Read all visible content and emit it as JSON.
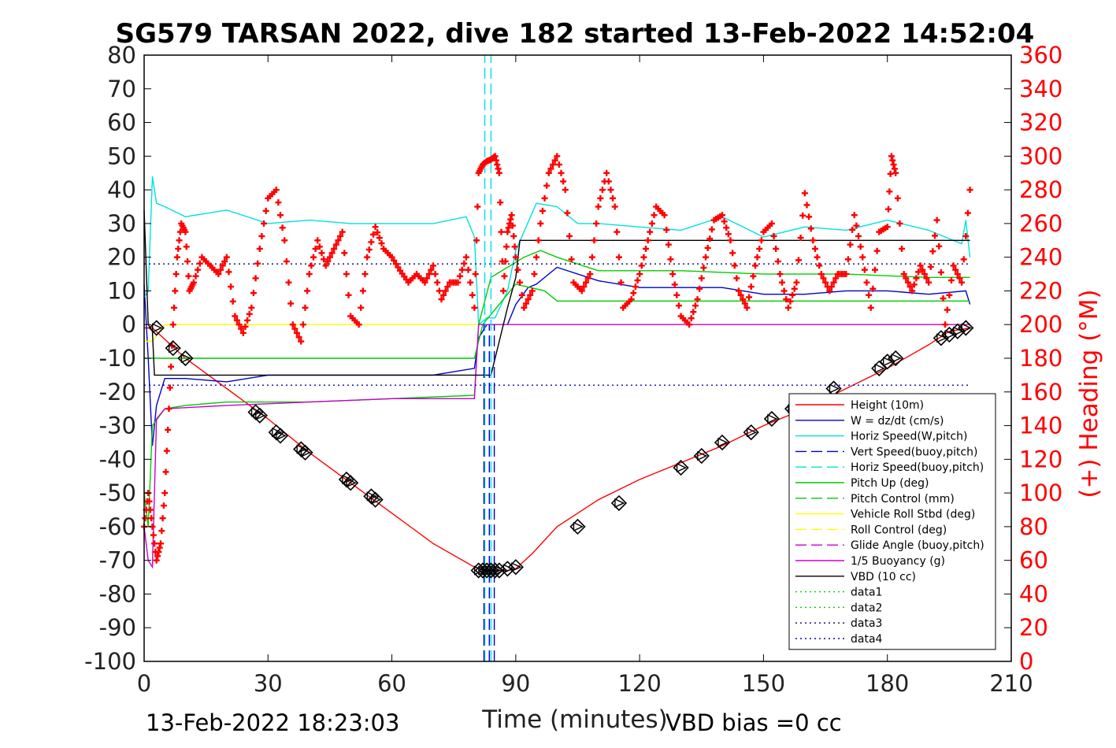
{
  "chart_data": {
    "type": "line",
    "title": "SG579 TARSAN 2022, dive 182 started 13-Feb-2022 14:52:04",
    "xlabel": "Time (minutes)",
    "ylabel_right": "(+) Heading (°M)",
    "xlim": [
      0,
      210
    ],
    "ylim_left": [
      -100,
      80
    ],
    "ylim_right": [
      0,
      360
    ],
    "x_ticks": [
      "0",
      "30",
      "60",
      "90",
      "120",
      "150",
      "180",
      "210"
    ],
    "y_ticks_left": [
      "80",
      "70",
      "60",
      "50",
      "40",
      "30",
      "20",
      "10",
      "0",
      "-10",
      "-20",
      "-30",
      "-40",
      "-50",
      "-60",
      "-70",
      "-80",
      "-90",
      "-100"
    ],
    "y_ticks_right": [
      "360",
      "340",
      "320",
      "300",
      "280",
      "260",
      "240",
      "220",
      "200",
      "180",
      "160",
      "140",
      "120",
      "100",
      "80",
      "60",
      "40",
      "20",
      "0"
    ],
    "footer_left": "13-Feb-2022 18:23:03",
    "footer_right": "VBD bias =0 cc",
    "legend_position": "lower-right",
    "legend": [
      {
        "label": "Height (10m)",
        "color": "#ff0000",
        "dash": "solid"
      },
      {
        "label": "W = dz/dt (cm/s)",
        "color": "#0000cc",
        "dash": "solid"
      },
      {
        "label": "Horiz Speed(W,pitch)",
        "color": "#00e0e0",
        "dash": "solid"
      },
      {
        "label": "Vert Speed(buoy,pitch)",
        "color": "#0000cc",
        "dash": "dashed"
      },
      {
        "label": "Horiz Speed(buoy,pitch)",
        "color": "#00e0e0",
        "dash": "dashed"
      },
      {
        "label": "Pitch Up (deg)",
        "color": "#00cc00",
        "dash": "solid"
      },
      {
        "label": "Pitch Control (mm)",
        "color": "#00cc00",
        "dash": "dashed"
      },
      {
        "label": "Vehicle Roll Stbd (deg)",
        "color": "#ffff00",
        "dash": "solid"
      },
      {
        "label": "Roll Control (deg)",
        "color": "#ffff00",
        "dash": "dashed"
      },
      {
        "label": "Glide Angle (buoy,pitch)",
        "color": "#cc00cc",
        "dash": "dashed"
      },
      {
        "label": "1/5 Buoyancy (g)",
        "color": "#cc00cc",
        "dash": "solid"
      },
      {
        "label": "VBD (10 cc)",
        "color": "#000000",
        "dash": "solid"
      },
      {
        "label": "data1",
        "color": "#00cc00",
        "dash": "dotted"
      },
      {
        "label": "data2",
        "color": "#00cc00",
        "dash": "dotted"
      },
      {
        "label": "data3",
        "color": "#000066",
        "dash": "dotted"
      },
      {
        "label": "data4",
        "color": "#0000cc",
        "dash": "dotted"
      }
    ],
    "series": [
      {
        "name": "Height (10m)",
        "axis": "left",
        "color": "#ff0000",
        "x": [
          0,
          2,
          10,
          20,
          30,
          40,
          50,
          60,
          70,
          80,
          83,
          86,
          88,
          90,
          94,
          100,
          110,
          120,
          130,
          140,
          150,
          160,
          170,
          180,
          190,
          195,
          200
        ],
        "y": [
          -1,
          -1,
          -10,
          -19,
          -28,
          -38,
          -47,
          -56,
          -65,
          -72,
          -73,
          -73,
          -73,
          -72.5,
          -68,
          -60,
          -52,
          -46,
          -41,
          -36,
          -30,
          -25,
          -19,
          -13,
          -6,
          -2,
          -1
        ]
      },
      {
        "name": "W = dz/dt (cm/s)",
        "axis": "left",
        "color": "#0000cc",
        "x": [
          0,
          1,
          2,
          3,
          5,
          10,
          20,
          30,
          40,
          50,
          60,
          70,
          80,
          81,
          83,
          85,
          88,
          90,
          93,
          95,
          100,
          110,
          120,
          130,
          140,
          150,
          160,
          170,
          180,
          190,
          199,
          200
        ],
        "y": [
          12,
          -10,
          -36,
          -24,
          -16,
          -16,
          -17,
          -15,
          -15,
          -15,
          -15,
          -15,
          -13,
          -4,
          0,
          0,
          0,
          6,
          11,
          12,
          17,
          13,
          11,
          11,
          11,
          9,
          9,
          10,
          10,
          9,
          10,
          6
        ]
      },
      {
        "name": "Horiz Speed(W,pitch)",
        "axis": "left",
        "color": "#00e0e0",
        "x": [
          0,
          1,
          2,
          3,
          5,
          10,
          20,
          30,
          40,
          50,
          60,
          70,
          78,
          80,
          81,
          83,
          85,
          88,
          90,
          95,
          100,
          105,
          110,
          120,
          130,
          140,
          150,
          160,
          170,
          180,
          190,
          198,
          199,
          200
        ],
        "y": [
          8,
          10,
          44,
          36,
          35,
          32,
          34,
          30,
          31,
          30,
          30,
          30,
          32,
          26,
          0,
          2,
          2,
          10,
          22,
          36,
          35,
          30,
          30,
          29,
          28,
          32,
          26,
          29,
          28,
          31,
          28,
          24,
          31,
          20
        ]
      },
      {
        "name": "Pitch Up (deg)",
        "axis": "left",
        "color": "#00cc00",
        "x": [
          0,
          1,
          2,
          5,
          10,
          20,
          40,
          60,
          80,
          81,
          84,
          88,
          92,
          96,
          100,
          110,
          130,
          150,
          170,
          190,
          200
        ],
        "y": [
          -50,
          -60,
          -30,
          -25,
          -24,
          -23,
          -23,
          -22,
          -21,
          0,
          14,
          17,
          20,
          22,
          20,
          16,
          16,
          15,
          15,
          14,
          14
        ]
      },
      {
        "name": "Pitch Control (mm)",
        "axis": "left",
        "color": "#00cc00",
        "x": [
          0,
          2,
          80,
          82,
          90,
          97,
          100,
          200
        ],
        "y": [
          -10,
          -10,
          -10,
          0,
          12,
          10,
          7,
          7
        ]
      },
      {
        "name": "Vehicle Roll Stbd (deg)",
        "axis": "left",
        "color": "#ffff00",
        "x": [
          0,
          2,
          5,
          10,
          30,
          50,
          60,
          80,
          90,
          110,
          130,
          150,
          170,
          190,
          200
        ],
        "y": [
          -5,
          -5,
          0,
          0,
          0,
          0,
          0,
          0,
          0,
          0,
          0,
          0,
          0,
          0,
          0
        ]
      },
      {
        "name": "1/5 Buoyancy (g)",
        "axis": "left",
        "color": "#cc00cc",
        "x": [
          0,
          1,
          2,
          3,
          5,
          20,
          40,
          60,
          80,
          81,
          84,
          90,
          200
        ],
        "y": [
          -60,
          -70,
          -72,
          -28,
          -25,
          -24,
          -23,
          -22,
          -22,
          0,
          0,
          0,
          0
        ]
      },
      {
        "name": "VBD (10 cc)",
        "axis": "left",
        "color": "#000000",
        "x": [
          0,
          1,
          2,
          2.5,
          80,
          81,
          84,
          86,
          88,
          90,
          91,
          200
        ],
        "y": [
          34,
          0,
          -2,
          -15,
          -15,
          -15,
          -15,
          -5,
          5,
          14,
          25,
          25
        ]
      },
      {
        "name": "data3",
        "axis": "left",
        "color": "#000066",
        "x": [
          0,
          200
        ],
        "y": [
          18,
          18
        ]
      },
      {
        "name": "data4",
        "axis": "left",
        "color": "#0000cc",
        "x": [
          0,
          200
        ],
        "y": [
          -18,
          -18
        ]
      },
      {
        "name": "(+) Heading (°M)",
        "axis": "right",
        "color": "#ff0000",
        "marker": "+",
        "x": [
          0,
          1,
          2,
          3,
          4,
          5,
          6,
          7,
          8,
          9,
          10,
          11,
          12,
          14,
          16,
          18,
          20,
          22,
          24,
          26,
          28,
          30,
          32,
          34,
          36,
          38,
          40,
          42,
          44,
          46,
          48,
          50,
          52,
          54,
          56,
          58,
          60,
          62,
          64,
          66,
          68,
          70,
          72,
          74,
          76,
          78,
          80,
          81,
          82,
          83,
          84,
          85,
          86,
          87,
          88,
          89,
          90,
          92,
          94,
          96,
          98,
          100,
          102,
          104,
          106,
          108,
          110,
          112,
          114,
          116,
          118,
          120,
          122,
          124,
          126,
          128,
          130,
          132,
          134,
          136,
          138,
          140,
          142,
          144,
          146,
          148,
          150,
          152,
          154,
          156,
          158,
          160,
          162,
          164,
          166,
          168,
          170,
          172,
          174,
          176,
          178,
          180,
          181,
          182,
          184,
          186,
          188,
          190,
          192,
          194,
          196,
          198,
          200
        ],
        "y": [
          80,
          100,
          80,
          60,
          70,
          100,
          150,
          200,
          240,
          260,
          255,
          220,
          225,
          240,
          235,
          230,
          240,
          205,
          195,
          210,
          245,
          275,
          280,
          250,
          200,
          190,
          230,
          250,
          235,
          245,
          255,
          205,
          200,
          240,
          258,
          245,
          240,
          232,
          225,
          230,
          225,
          235,
          215,
          225,
          225,
          240,
          210,
          290,
          295,
          297,
          298,
          300,
          290,
          220,
          255,
          265,
          240,
          210,
          220,
          260,
          290,
          300,
          280,
          225,
          220,
          230,
          270,
          290,
          270,
          210,
          215,
          230,
          250,
          270,
          265,
          230,
          205,
          200,
          215,
          240,
          262,
          265,
          250,
          220,
          210,
          235,
          255,
          260,
          230,
          210,
          225,
          278,
          250,
          230,
          220,
          230,
          230,
          265,
          240,
          210,
          255,
          258,
          300,
          290,
          230,
          220,
          235,
          225,
          262,
          200,
          235,
          225,
          280
        ]
      }
    ],
    "diamond_markers": {
      "color": "#000000",
      "points": [
        [
          3,
          -1
        ],
        [
          7,
          -7
        ],
        [
          10,
          -10
        ],
        [
          27,
          -26
        ],
        [
          28,
          -27
        ],
        [
          32,
          -32
        ],
        [
          33,
          -33
        ],
        [
          38,
          -37
        ],
        [
          39,
          -38
        ],
        [
          49,
          -46
        ],
        [
          50,
          -47
        ],
        [
          55,
          -51
        ],
        [
          56,
          -52
        ],
        [
          81,
          -73
        ],
        [
          82,
          -73
        ],
        [
          83,
          -73
        ],
        [
          84,
          -73
        ],
        [
          85,
          -73
        ],
        [
          86,
          -73
        ],
        [
          88,
          -72.5
        ],
        [
          90,
          -72
        ],
        [
          105,
          -60
        ],
        [
          115,
          -53
        ],
        [
          130,
          -42.5
        ],
        [
          135,
          -39
        ],
        [
          140,
          -35
        ],
        [
          147,
          -32
        ],
        [
          152,
          -28
        ],
        [
          157,
          -25
        ],
        [
          167,
          -19
        ],
        [
          178,
          -13
        ],
        [
          180,
          -11
        ],
        [
          182,
          -10
        ],
        [
          193,
          -4
        ],
        [
          195,
          -3
        ],
        [
          197,
          -2
        ],
        [
          199,
          -1
        ]
      ]
    },
    "vertical_lines": [
      {
        "x": 82.5,
        "color": "#00e0e0",
        "dash": "dashed",
        "axis": "left",
        "y_from": -100,
        "y_to": 80
      },
      {
        "x": 84,
        "color": "#00e0e0",
        "dash": "dashed",
        "axis": "left",
        "y_from": -100,
        "y_to": 80
      },
      {
        "x": 82.3,
        "color": "#0000cc",
        "dash": "dashed",
        "axis": "left",
        "y_from": -100,
        "y_to": 0
      },
      {
        "x": 83.6,
        "color": "#0000cc",
        "dash": "dashed",
        "axis": "left",
        "y_from": -100,
        "y_to": 0
      },
      {
        "x": 84.8,
        "color": "#0000cc",
        "dash": "dashed",
        "axis": "left",
        "y_from": -100,
        "y_to": 0
      }
    ]
  }
}
